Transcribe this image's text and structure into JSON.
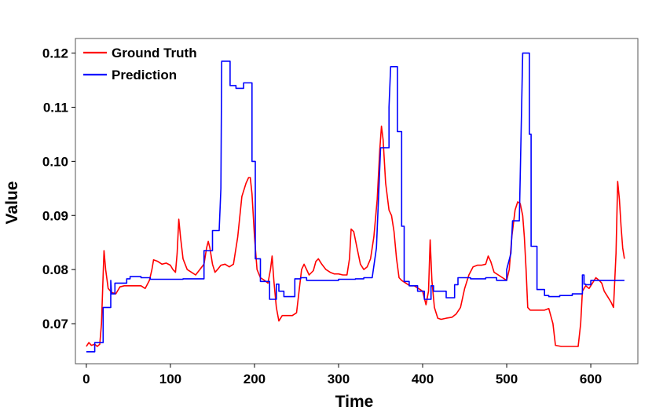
{
  "chart_data": {
    "type": "line",
    "title": "",
    "xlabel": "Time",
    "ylabel": "Value",
    "xlim": [
      -13,
      656
    ],
    "ylim": [
      0.0626,
      0.1227
    ],
    "xticks": [
      0,
      100,
      200,
      300,
      400,
      500,
      600
    ],
    "yticks": [
      0.07,
      0.08,
      0.09,
      0.1,
      0.11,
      0.12
    ],
    "ytick_labels": [
      "0.07",
      "0.08",
      "0.09",
      "0.10",
      "0.11",
      "0.12"
    ],
    "grid": false,
    "legend_position": "top-left",
    "series": [
      {
        "name": "Ground Truth",
        "color": "#ff0000",
        "points": [
          [
            0,
            0.0658
          ],
          [
            3,
            0.0665
          ],
          [
            6,
            0.066
          ],
          [
            10,
            0.0662
          ],
          [
            13,
            0.0658
          ],
          [
            16,
            0.0662
          ],
          [
            18,
            0.07
          ],
          [
            20,
            0.079
          ],
          [
            21,
            0.0835
          ],
          [
            23,
            0.08
          ],
          [
            26,
            0.0765
          ],
          [
            30,
            0.0758
          ],
          [
            35,
            0.0755
          ],
          [
            40,
            0.0768
          ],
          [
            45,
            0.077
          ],
          [
            50,
            0.077
          ],
          [
            55,
            0.077
          ],
          [
            60,
            0.077
          ],
          [
            65,
            0.077
          ],
          [
            70,
            0.0765
          ],
          [
            75,
            0.078
          ],
          [
            78,
            0.08
          ],
          [
            80,
            0.0818
          ],
          [
            85,
            0.0815
          ],
          [
            90,
            0.081
          ],
          [
            95,
            0.0812
          ],
          [
            100,
            0.0808
          ],
          [
            103,
            0.08
          ],
          [
            106,
            0.0795
          ],
          [
            108,
            0.083
          ],
          [
            110,
            0.0893
          ],
          [
            112,
            0.086
          ],
          [
            115,
            0.082
          ],
          [
            120,
            0.08
          ],
          [
            125,
            0.0795
          ],
          [
            130,
            0.079
          ],
          [
            135,
            0.08
          ],
          [
            140,
            0.081
          ],
          [
            143,
            0.084
          ],
          [
            145,
            0.0852
          ],
          [
            147,
            0.084
          ],
          [
            150,
            0.081
          ],
          [
            153,
            0.0795
          ],
          [
            156,
            0.08
          ],
          [
            160,
            0.0808
          ],
          [
            165,
            0.081
          ],
          [
            170,
            0.0805
          ],
          [
            175,
            0.081
          ],
          [
            180,
            0.086
          ],
          [
            185,
            0.0935
          ],
          [
            190,
            0.096
          ],
          [
            193,
            0.097
          ],
          [
            195,
            0.097
          ],
          [
            197,
            0.094
          ],
          [
            200,
            0.086
          ],
          [
            203,
            0.08
          ],
          [
            207,
            0.0785
          ],
          [
            212,
            0.078
          ],
          [
            216,
            0.0775
          ],
          [
            219,
            0.08
          ],
          [
            221,
            0.0825
          ],
          [
            223,
            0.078
          ],
          [
            226,
            0.073
          ],
          [
            229,
            0.0705
          ],
          [
            233,
            0.0715
          ],
          [
            238,
            0.0715
          ],
          [
            245,
            0.0715
          ],
          [
            250,
            0.072
          ],
          [
            253,
            0.076
          ],
          [
            256,
            0.08
          ],
          [
            259,
            0.081
          ],
          [
            262,
            0.08
          ],
          [
            265,
            0.079
          ],
          [
            270,
            0.0798
          ],
          [
            273,
            0.0815
          ],
          [
            276,
            0.082
          ],
          [
            280,
            0.081
          ],
          [
            285,
            0.08
          ],
          [
            290,
            0.0795
          ],
          [
            295,
            0.0792
          ],
          [
            300,
            0.0792
          ],
          [
            305,
            0.079
          ],
          [
            310,
            0.079
          ],
          [
            313,
            0.082
          ],
          [
            315,
            0.0875
          ],
          [
            318,
            0.087
          ],
          [
            322,
            0.084
          ],
          [
            326,
            0.081
          ],
          [
            330,
            0.08
          ],
          [
            334,
            0.0805
          ],
          [
            338,
            0.082
          ],
          [
            342,
            0.086
          ],
          [
            346,
            0.093
          ],
          [
            349,
            0.102
          ],
          [
            351,
            0.1065
          ],
          [
            353,
            0.104
          ],
          [
            356,
            0.096
          ],
          [
            360,
            0.091
          ],
          [
            363,
            0.09
          ],
          [
            366,
            0.087
          ],
          [
            369,
            0.082
          ],
          [
            372,
            0.0785
          ],
          [
            375,
            0.078
          ],
          [
            380,
            0.0775
          ],
          [
            385,
            0.077
          ],
          [
            390,
            0.077
          ],
          [
            395,
            0.0765
          ],
          [
            400,
            0.076
          ],
          [
            404,
            0.0735
          ],
          [
            407,
            0.076
          ],
          [
            409,
            0.0855
          ],
          [
            411,
            0.078
          ],
          [
            414,
            0.073
          ],
          [
            418,
            0.071
          ],
          [
            422,
            0.0708
          ],
          [
            428,
            0.071
          ],
          [
            435,
            0.0712
          ],
          [
            440,
            0.0718
          ],
          [
            445,
            0.073
          ],
          [
            450,
            0.0765
          ],
          [
            455,
            0.079
          ],
          [
            460,
            0.0805
          ],
          [
            465,
            0.0808
          ],
          [
            470,
            0.0808
          ],
          [
            475,
            0.081
          ],
          [
            478,
            0.0825
          ],
          [
            481,
            0.0815
          ],
          [
            485,
            0.0795
          ],
          [
            490,
            0.079
          ],
          [
            495,
            0.0785
          ],
          [
            500,
            0.078
          ],
          [
            503,
            0.08
          ],
          [
            506,
            0.086
          ],
          [
            510,
            0.091
          ],
          [
            513,
            0.0925
          ],
          [
            516,
            0.0922
          ],
          [
            519,
            0.09
          ],
          [
            521,
            0.086
          ],
          [
            523,
            0.08
          ],
          [
            525,
            0.073
          ],
          [
            528,
            0.0725
          ],
          [
            533,
            0.0725
          ],
          [
            540,
            0.0725
          ],
          [
            545,
            0.0725
          ],
          [
            550,
            0.0728
          ],
          [
            555,
            0.07
          ],
          [
            558,
            0.066
          ],
          [
            565,
            0.0658
          ],
          [
            575,
            0.0658
          ],
          [
            580,
            0.0658
          ],
          [
            585,
            0.0658
          ],
          [
            588,
            0.07
          ],
          [
            590,
            0.076
          ],
          [
            594,
            0.077
          ],
          [
            598,
            0.0765
          ],
          [
            602,
            0.0775
          ],
          [
            606,
            0.0785
          ],
          [
            610,
            0.078
          ],
          [
            613,
            0.0775
          ],
          [
            616,
            0.076
          ],
          [
            620,
            0.075
          ],
          [
            624,
            0.074
          ],
          [
            627,
            0.073
          ],
          [
            630,
            0.083
          ],
          [
            632,
            0.0963
          ],
          [
            634,
            0.093
          ],
          [
            636,
            0.088
          ],
          [
            638,
            0.084
          ],
          [
            640,
            0.082
          ]
        ]
      },
      {
        "name": "Prediction",
        "color": "#0000ff",
        "points": [
          [
            0,
            0.0648
          ],
          [
            10,
            0.0648
          ],
          [
            10,
            0.0665
          ],
          [
            20,
            0.0665
          ],
          [
            20,
            0.073
          ],
          [
            29,
            0.073
          ],
          [
            29,
            0.078
          ],
          [
            30,
            0.0755
          ],
          [
            34,
            0.0755
          ],
          [
            34,
            0.0775
          ],
          [
            48,
            0.0775
          ],
          [
            48,
            0.0783
          ],
          [
            52,
            0.0783
          ],
          [
            52,
            0.0787
          ],
          [
            65,
            0.0787
          ],
          [
            65,
            0.0785
          ],
          [
            76,
            0.0785
          ],
          [
            76,
            0.0782
          ],
          [
            115,
            0.0782
          ],
          [
            115,
            0.0783
          ],
          [
            140,
            0.0783
          ],
          [
            140,
            0.0835
          ],
          [
            150,
            0.0835
          ],
          [
            150,
            0.0872
          ],
          [
            158,
            0.0872
          ],
          [
            160,
            0.095
          ],
          [
            161,
            0.1185
          ],
          [
            171,
            0.1185
          ],
          [
            171,
            0.114
          ],
          [
            178,
            0.114
          ],
          [
            178,
            0.1135
          ],
          [
            187,
            0.1135
          ],
          [
            187,
            0.1145
          ],
          [
            197,
            0.1145
          ],
          [
            197,
            0.1
          ],
          [
            201,
            0.1
          ],
          [
            201,
            0.082
          ],
          [
            207,
            0.082
          ],
          [
            207,
            0.0778
          ],
          [
            218,
            0.0778
          ],
          [
            218,
            0.0745
          ],
          [
            226,
            0.0745
          ],
          [
            226,
            0.0773
          ],
          [
            229,
            0.0773
          ],
          [
            229,
            0.076
          ],
          [
            235,
            0.076
          ],
          [
            235,
            0.075
          ],
          [
            248,
            0.075
          ],
          [
            248,
            0.0783
          ],
          [
            255,
            0.0783
          ],
          [
            255,
            0.0785
          ],
          [
            262,
            0.0785
          ],
          [
            262,
            0.078
          ],
          [
            300,
            0.078
          ],
          [
            300,
            0.0782
          ],
          [
            320,
            0.0782
          ],
          [
            320,
            0.0783
          ],
          [
            330,
            0.0783
          ],
          [
            330,
            0.0785
          ],
          [
            340,
            0.0785
          ],
          [
            345,
            0.084
          ],
          [
            350,
            0.1025
          ],
          [
            357,
            0.1025
          ],
          [
            357,
            0.1025
          ],
          [
            360,
            0.1025
          ],
          [
            360,
            0.11
          ],
          [
            362,
            0.1175
          ],
          [
            370,
            0.1175
          ],
          [
            370,
            0.1055
          ],
          [
            375,
            0.1055
          ],
          [
            375,
            0.088
          ],
          [
            378,
            0.088
          ],
          [
            378,
            0.0778
          ],
          [
            384,
            0.0778
          ],
          [
            384,
            0.077
          ],
          [
            394,
            0.077
          ],
          [
            394,
            0.076
          ],
          [
            402,
            0.076
          ],
          [
            402,
            0.0745
          ],
          [
            410,
            0.0745
          ],
          [
            410,
            0.077
          ],
          [
            413,
            0.077
          ],
          [
            413,
            0.076
          ],
          [
            428,
            0.076
          ],
          [
            428,
            0.0748
          ],
          [
            438,
            0.0748
          ],
          [
            438,
            0.0772
          ],
          [
            442,
            0.0772
          ],
          [
            442,
            0.0785
          ],
          [
            457,
            0.0785
          ],
          [
            457,
            0.0783
          ],
          [
            475,
            0.0783
          ],
          [
            475,
            0.0785
          ],
          [
            488,
            0.0785
          ],
          [
            488,
            0.078
          ],
          [
            500,
            0.078
          ],
          [
            500,
            0.08
          ],
          [
            505,
            0.083
          ],
          [
            507,
            0.089
          ],
          [
            515,
            0.089
          ],
          [
            518,
            0.112
          ],
          [
            519,
            0.12
          ],
          [
            527,
            0.12
          ],
          [
            527,
            0.105
          ],
          [
            529,
            0.105
          ],
          [
            529,
            0.0843
          ],
          [
            536,
            0.0843
          ],
          [
            536,
            0.0763
          ],
          [
            545,
            0.0763
          ],
          [
            545,
            0.0752
          ],
          [
            550,
            0.0752
          ],
          [
            550,
            0.075
          ],
          [
            563,
            0.075
          ],
          [
            563,
            0.0752
          ],
          [
            578,
            0.0752
          ],
          [
            578,
            0.0755
          ],
          [
            590,
            0.0755
          ],
          [
            590,
            0.079
          ],
          [
            592,
            0.079
          ],
          [
            592,
            0.0773
          ],
          [
            594,
            0.0773
          ],
          [
            594,
            0.0772
          ],
          [
            600,
            0.0772
          ],
          [
            600,
            0.078
          ],
          [
            640,
            0.078
          ]
        ]
      }
    ]
  }
}
